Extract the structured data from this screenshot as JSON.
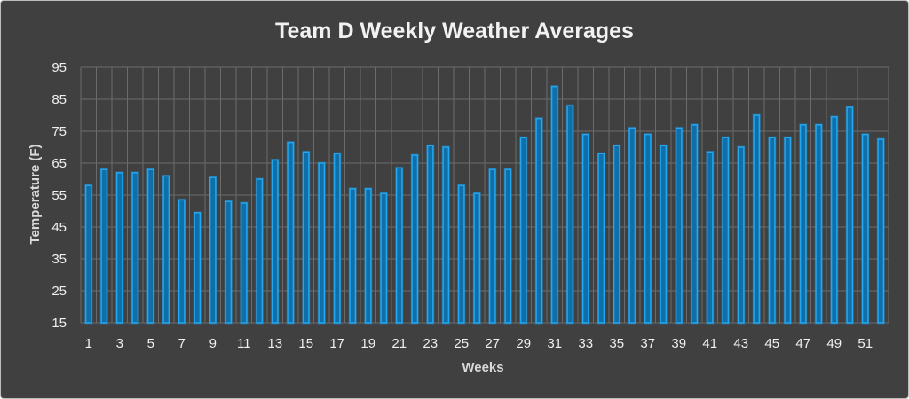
{
  "chart_data": {
    "type": "bar",
    "title": "Team D Weekly Weather Averages",
    "xlabel": "Weeks",
    "ylabel": "Temperature (F)",
    "ylim": [
      15,
      95
    ],
    "yticks": [
      "15",
      "25",
      "35",
      "45",
      "55",
      "65",
      "75",
      "85",
      "95"
    ],
    "grid": true,
    "legend": "none",
    "bar_color": "#23a7f0",
    "background_color": "#404040",
    "categories": [
      "1",
      "2",
      "3",
      "4",
      "5",
      "6",
      "7",
      "8",
      "9",
      "10",
      "11",
      "12",
      "13",
      "14",
      "15",
      "16",
      "17",
      "18",
      "19",
      "20",
      "21",
      "22",
      "23",
      "24",
      "25",
      "26",
      "27",
      "28",
      "29",
      "30",
      "31",
      "32",
      "33",
      "34",
      "35",
      "36",
      "37",
      "38",
      "39",
      "40",
      "41",
      "42",
      "43",
      "44",
      "45",
      "46",
      "47",
      "48",
      "49",
      "50",
      "51",
      "52"
    ],
    "xtick_labels": [
      "1",
      "3",
      "5",
      "7",
      "9",
      "11",
      "13",
      "15",
      "17",
      "19",
      "21",
      "23",
      "25",
      "27",
      "29",
      "31",
      "33",
      "35",
      "37",
      "39",
      "41",
      "43",
      "45",
      "47",
      "49",
      "51"
    ],
    "values": [
      58,
      63,
      62,
      62,
      63,
      61,
      53.5,
      49.5,
      60.5,
      53,
      52.5,
      60,
      66,
      71.5,
      68.5,
      65,
      68,
      57,
      57,
      55.5,
      63.5,
      67.5,
      70.5,
      70,
      58,
      55.5,
      63,
      63,
      73,
      79,
      89,
      83,
      74,
      68,
      70.5,
      76,
      74,
      70.5,
      76,
      77,
      68.5,
      73,
      70,
      80,
      73,
      73,
      77,
      77,
      79.5,
      82.5,
      74,
      72.5
    ]
  }
}
